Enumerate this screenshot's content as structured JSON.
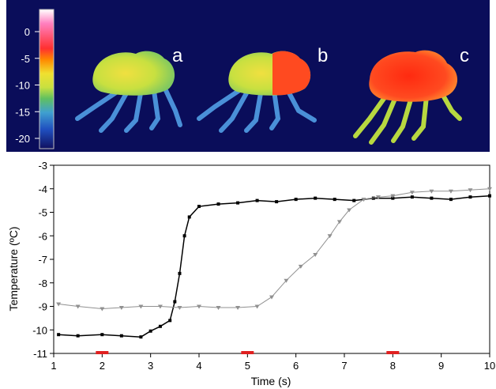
{
  "thermal_image": {
    "panel_labels": [
      "a",
      "b",
      "c"
    ],
    "colorbar": {
      "ticks": [
        0,
        -5,
        -10,
        -15,
        -20
      ]
    },
    "colors": {
      "background": "#0a0d5a",
      "cold": "#4a90d8",
      "mid": "#c8e040",
      "warm": "#ff4a20"
    }
  },
  "chart_data": {
    "type": "line",
    "xlabel": "Time (s)",
    "ylabel": "Temperature (ºC)",
    "xlim": [
      1,
      10
    ],
    "ylim": [
      -11,
      -3
    ],
    "xticks": [
      1,
      2,
      3,
      4,
      5,
      6,
      7,
      8,
      9,
      10
    ],
    "yticks": [
      -11,
      -10,
      -9,
      -8,
      -7,
      -6,
      -5,
      -4,
      -3
    ],
    "grid": false,
    "series": [
      {
        "marker": "square",
        "color": "#000000",
        "x": [
          1.1,
          1.5,
          2.0,
          2.4,
          2.8,
          3.0,
          3.2,
          3.4,
          3.5,
          3.6,
          3.7,
          3.8,
          4.0,
          4.4,
          4.8,
          5.2,
          5.6,
          6.0,
          6.4,
          6.8,
          7.2,
          7.6,
          8.0,
          8.4,
          8.8,
          9.2,
          9.6,
          10.0
        ],
        "y": [
          -10.2,
          -10.25,
          -10.2,
          -10.25,
          -10.3,
          -10.05,
          -9.85,
          -9.6,
          -8.8,
          -7.6,
          -6.0,
          -5.2,
          -4.75,
          -4.65,
          -4.6,
          -4.5,
          -4.55,
          -4.45,
          -4.4,
          -4.45,
          -4.5,
          -4.4,
          -4.4,
          -4.35,
          -4.4,
          -4.45,
          -4.35,
          -4.3
        ]
      },
      {
        "marker": "triangle-down",
        "color": "#909090",
        "x": [
          1.1,
          1.5,
          2.0,
          2.4,
          2.8,
          3.2,
          3.6,
          4.0,
          4.4,
          4.8,
          5.2,
          5.5,
          5.8,
          6.1,
          6.4,
          6.7,
          6.9,
          7.1,
          7.4,
          7.7,
          8.0,
          8.4,
          8.8,
          9.2,
          9.6,
          10.0
        ],
        "y": [
          -8.9,
          -9.0,
          -9.1,
          -9.05,
          -9.0,
          -9.0,
          -9.05,
          -9.0,
          -9.05,
          -9.05,
          -9.0,
          -8.6,
          -7.9,
          -7.3,
          -6.8,
          -6.0,
          -5.4,
          -4.9,
          -4.45,
          -4.35,
          -4.3,
          -4.15,
          -4.1,
          -4.1,
          -4.05,
          -4.0
        ]
      }
    ],
    "markers_on_axis": {
      "color": "#e02020",
      "x": [
        2,
        5,
        8
      ]
    }
  }
}
